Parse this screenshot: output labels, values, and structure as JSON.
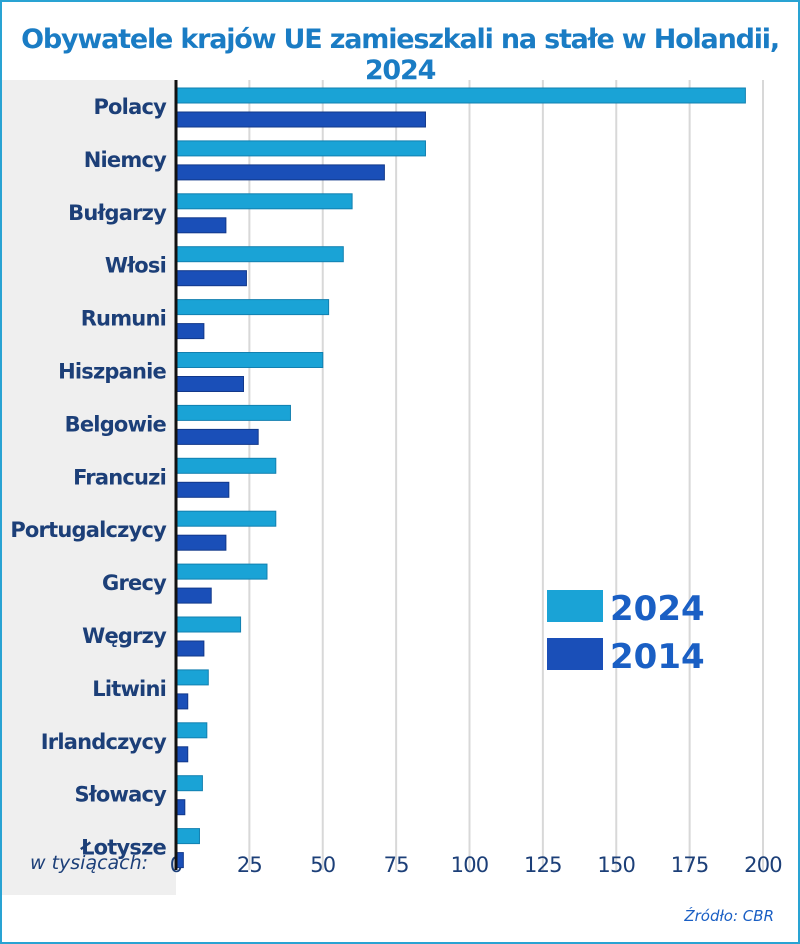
{
  "chart_data": {
    "type": "bar",
    "orientation": "horizontal",
    "title": "Obywatele krajów UE zamieszkali na stałe w Holandii, 2024",
    "xlabel": "w tysiącach:",
    "source": "Źródło: CBR",
    "xlim": [
      0,
      200
    ],
    "xticks": [
      0,
      25,
      50,
      75,
      100,
      125,
      150,
      175,
      200
    ],
    "grid": true,
    "legend_position": "right",
    "categories": [
      "Polacy",
      "Niemcy",
      "Bułgarzy",
      "Włosi",
      "Rumuni",
      "Hiszpanie",
      "Belgowie",
      "Francuzi",
      "Portugalczycy",
      "Grecy",
      "Węgrzy",
      "Litwini",
      "Irlandczycy",
      "Słowacy",
      "Łotysze"
    ],
    "series": [
      {
        "name": "2024",
        "color": "#1aa3d6",
        "values": [
          194,
          85,
          60,
          57,
          52,
          50,
          39,
          34,
          34,
          31,
          22,
          11,
          10.5,
          9,
          8
        ]
      },
      {
        "name": "2014",
        "color": "#1a4fb8",
        "values": [
          85,
          71,
          17,
          24,
          9.5,
          23,
          28,
          18,
          17,
          12,
          9.5,
          4,
          4,
          3,
          2.5
        ]
      }
    ]
  }
}
